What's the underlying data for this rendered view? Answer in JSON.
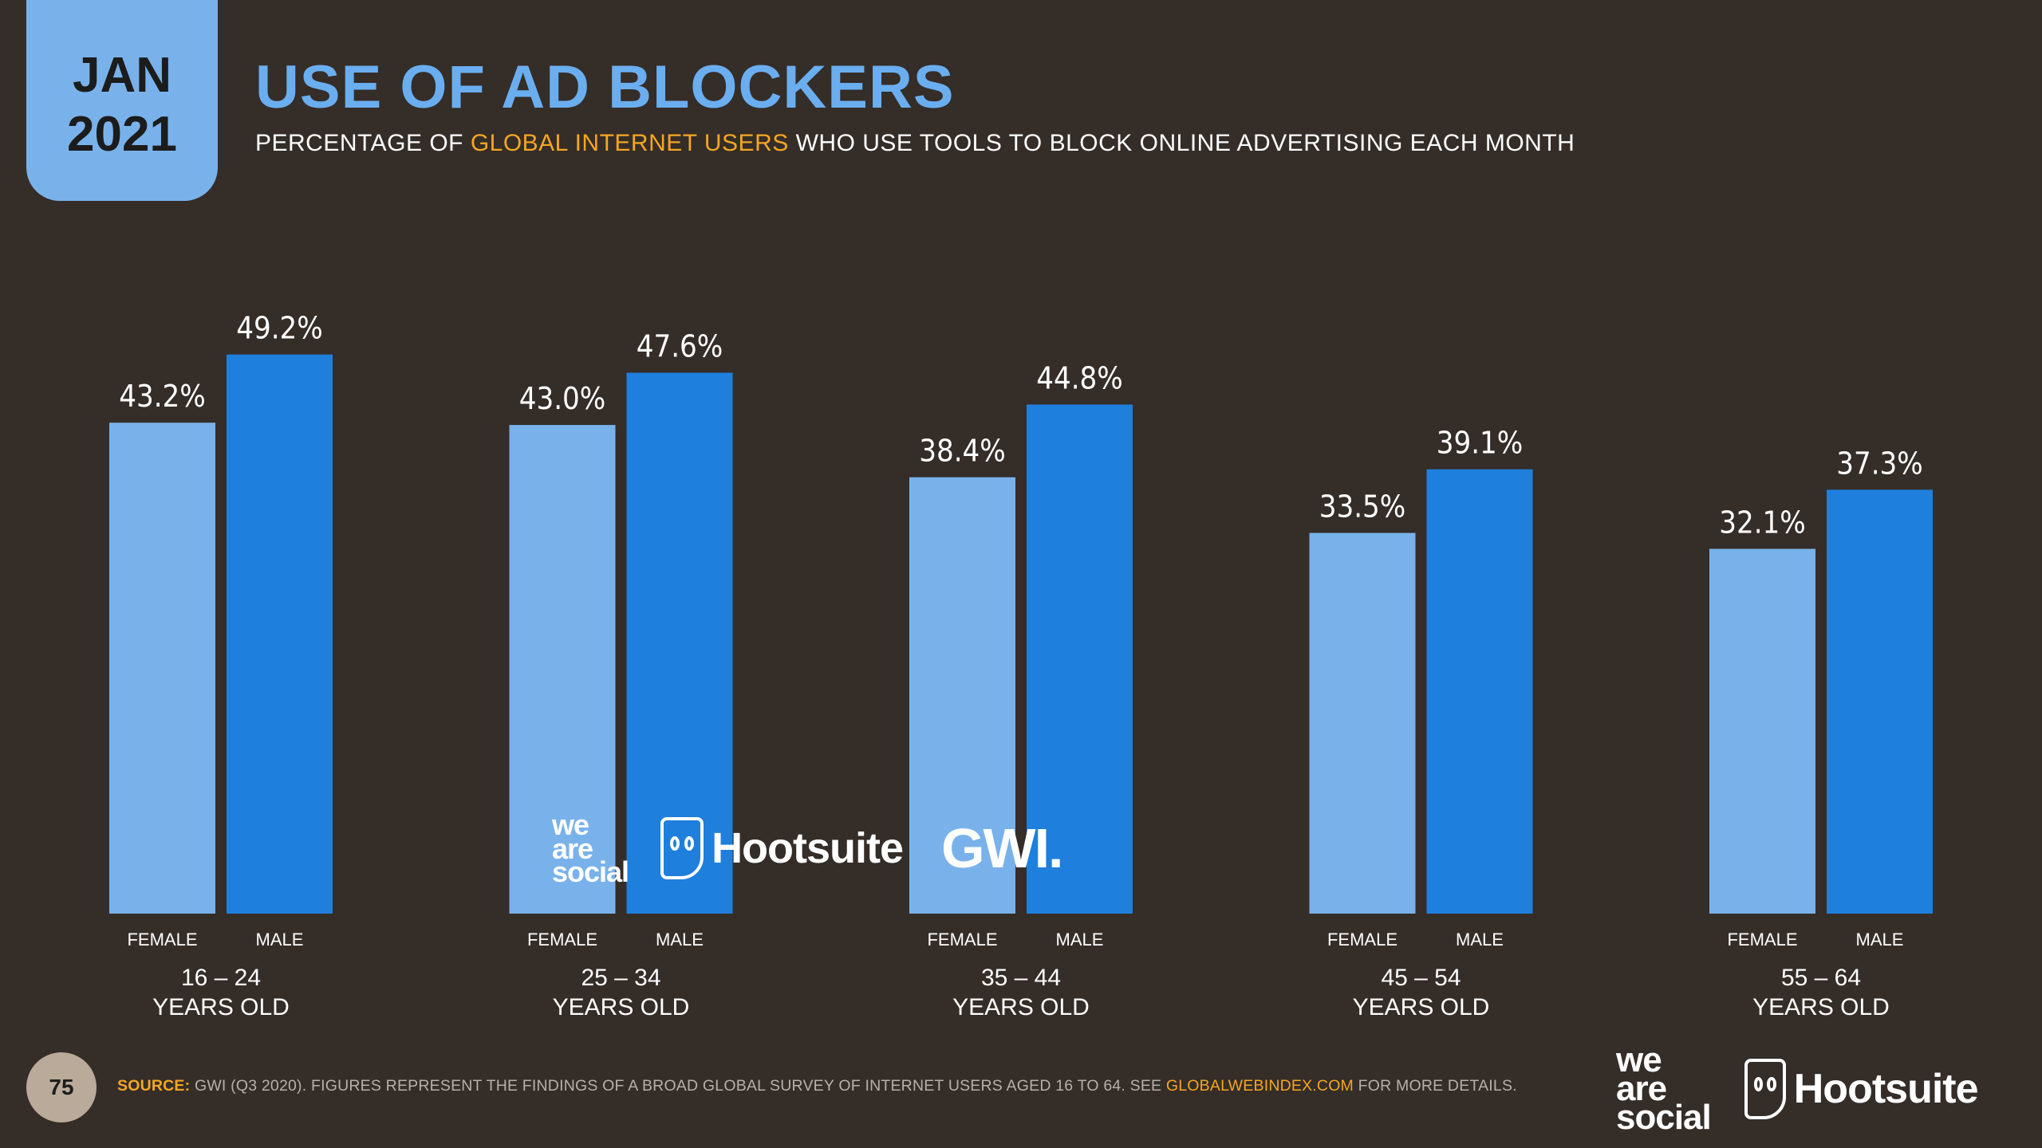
{
  "badge": {
    "month": "JAN",
    "year": "2021"
  },
  "title": "USE OF AD BLOCKERS",
  "subtitle": {
    "before": "PERCENTAGE OF ",
    "highlight": "GLOBAL INTERNET USERS",
    "after": " WHO USE TOOLS TO BLOCK ONLINE ADVERTISING EACH MONTH"
  },
  "colors": {
    "background": "#352d28",
    "female": "#79b2ea",
    "male": "#1e7fdd",
    "title": "#6aaef0",
    "accent": "#f5a623"
  },
  "chart_data": {
    "type": "bar",
    "categories": [
      {
        "range": "16 – 24",
        "label": "YEARS OLD"
      },
      {
        "range": "25 – 34",
        "label": "YEARS OLD"
      },
      {
        "range": "35 – 44",
        "label": "YEARS OLD"
      },
      {
        "range": "45 – 54",
        "label": "YEARS OLD"
      },
      {
        "range": "55 – 64",
        "label": "YEARS OLD"
      }
    ],
    "series": [
      {
        "name": "FEMALE",
        "values": [
          43.2,
          43.0,
          38.4,
          33.5,
          32.1
        ]
      },
      {
        "name": "MALE",
        "values": [
          49.2,
          47.6,
          44.8,
          39.1,
          37.3
        ]
      }
    ],
    "value_suffix": "%",
    "ylim": [
      0,
      55
    ],
    "grid": false,
    "legend": "none"
  },
  "watermark": {
    "we": "we",
    "are": "are",
    "social": "social",
    "hootsuite": "Hootsuite",
    "gwi": "GWI."
  },
  "footer": {
    "page_number": "75",
    "source_label": "SOURCE:",
    "source_text": " GWI (Q3 2020). FIGURES REPRESENT THE FINDINGS OF A BROAD GLOBAL SURVEY OF INTERNET USERS AGED 16 TO 64. SEE ",
    "source_link": "GLOBALWEBINDEX.COM",
    "source_end": " FOR MORE DETAILS.",
    "brand_we": "we",
    "brand_are": "are",
    "brand_social": "social",
    "brand_hootsuite": "Hootsuite"
  }
}
